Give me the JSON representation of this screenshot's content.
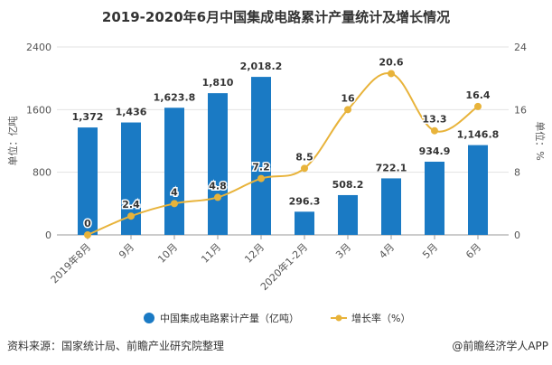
{
  "chart_data": {
    "type": "bar+line",
    "title": "2019-2020年6月中国集成电路累计产量统计及增长情况",
    "categories": [
      "2019年8月",
      "9月",
      "10月",
      "11月",
      "12月",
      "2020年1-2月",
      "3月",
      "4月",
      "5月",
      "6月"
    ],
    "series": [
      {
        "name": "中国集成电路累计产量（亿吨）",
        "type": "bar",
        "axis": "left",
        "color": "#1a7ac4",
        "values": [
          1372,
          1436,
          1623.8,
          1810,
          2018.2,
          296.3,
          508.2,
          722.1,
          934.9,
          1146.8
        ],
        "labels": [
          "1,372",
          "1,436",
          "1,623.8",
          "1,810",
          "2,018.2",
          "296.3",
          "508.2",
          "722.1",
          "934.9",
          "1,146.8"
        ]
      },
      {
        "name": "增长率（%）",
        "type": "line",
        "axis": "right",
        "color": "#e8b33a",
        "smooth": true,
        "values": [
          0,
          2.4,
          4,
          4.8,
          7.2,
          8.5,
          16,
          20.6,
          13.3,
          16.4
        ],
        "labels": [
          "0",
          "2.4",
          "4",
          "4.8",
          "7.2",
          "8.5",
          "16",
          "20.6",
          "13.3",
          "16.4"
        ]
      }
    ],
    "ylabel_left": "单位：亿吨",
    "ylabel_right": "单位：%",
    "ylim_left": [
      0,
      2400
    ],
    "ylim_right": [
      0,
      24
    ],
    "yticks_left": [
      "0",
      "800",
      "1600",
      "2400"
    ],
    "yticks_right": [
      "0",
      "8",
      "16",
      "24"
    ],
    "grid": true,
    "legend": "bottom"
  },
  "footer": {
    "source": "资料来源：国家统计局、前瞻产业研究院整理",
    "brand": "@前瞻经济学人APP"
  }
}
